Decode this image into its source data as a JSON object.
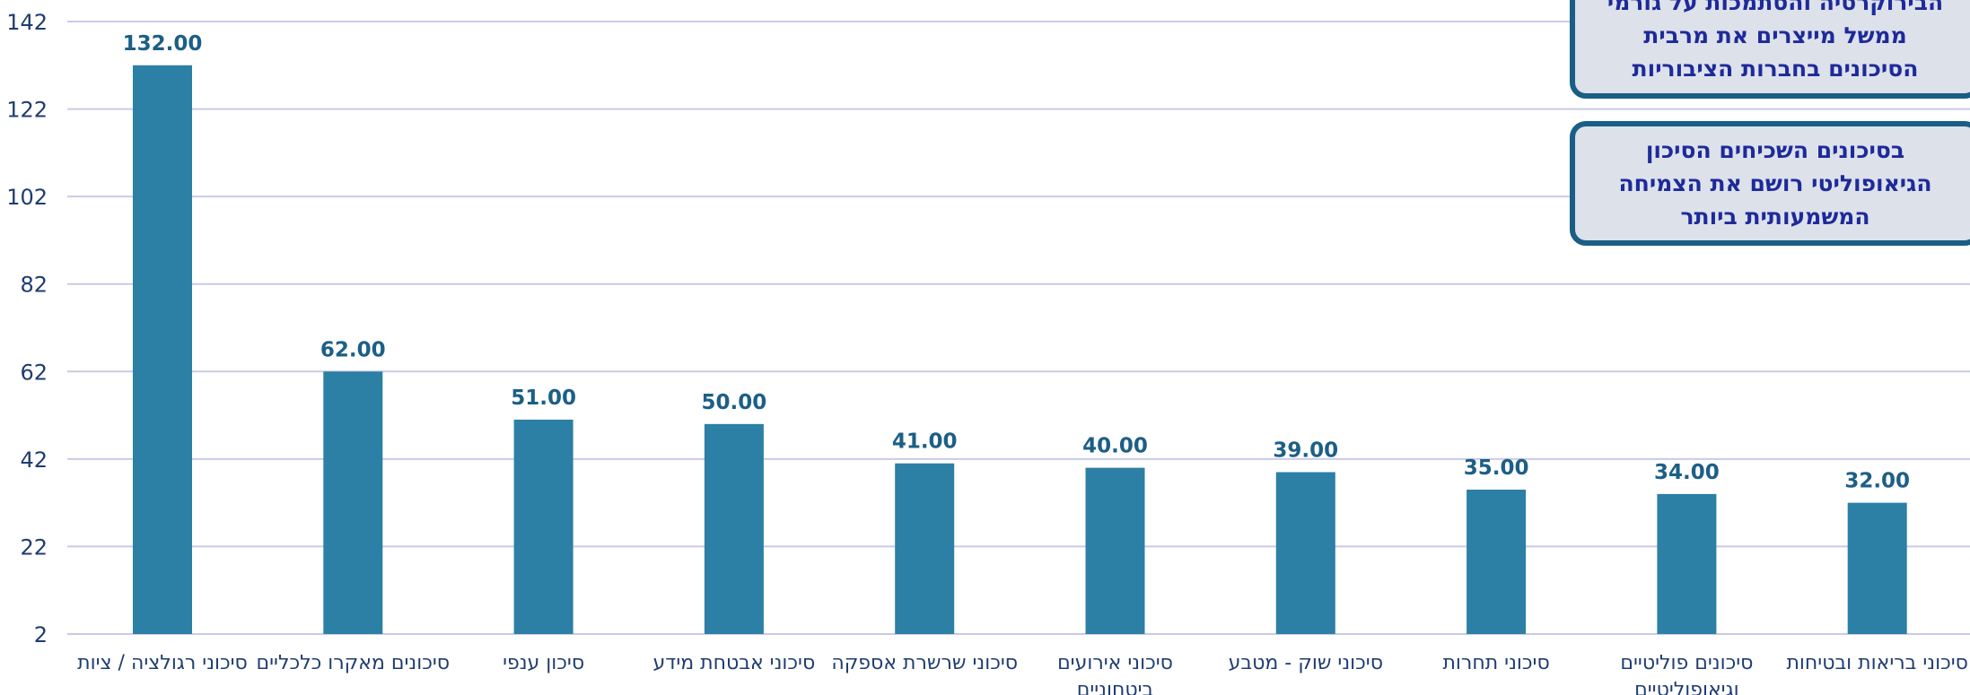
{
  "chart_data": {
    "type": "bar",
    "title": "",
    "xlabel": "",
    "ylabel": "",
    "ylim": [
      2,
      142
    ],
    "yticks": [
      2,
      22,
      42,
      62,
      82,
      102,
      122,
      142
    ],
    "grid": true,
    "categories": [
      [
        "סיכוני רגולציה / ציות"
      ],
      [
        "סיכונים מאקרו כלכליים"
      ],
      [
        "סיכון ענפי"
      ],
      [
        "סיכוני אבטחת מידע"
      ],
      [
        "סיכוני שרשרת אספקה"
      ],
      [
        "סיכוני אירועים",
        "ביטחוניים"
      ],
      [
        "סיכוני שוק - מטבע"
      ],
      [
        "סיכוני תחרות"
      ],
      [
        "סיכונים פוליטיים",
        "וגיאופוליטיים"
      ],
      [
        "סיכוני בריאות ובטיחות"
      ]
    ],
    "values": [
      132,
      62,
      51,
      50,
      41,
      40,
      39,
      35,
      34,
      32
    ],
    "value_labels": [
      "132.00",
      "62.00",
      "51.00",
      "50.00",
      "41.00",
      "40.00",
      "39.00",
      "35.00",
      "34.00",
      "32.00"
    ],
    "colors": {
      "bar": "#2c7fa5",
      "grid": "#c9cbe6",
      "axis_text": "#1f3c70",
      "value_label": "#1c5f86"
    }
  },
  "callouts": [
    {
      "lines": [
        "הבירוקרטיה והסתמכות על גורמי",
        "ממשל מייצרים את מרבית",
        "הסיכונים בחברות הציבוריות"
      ]
    },
    {
      "lines": [
        "בסיכונים השכיחים הסיכון",
        "הגיאופוליטי רושם את הצמיחה",
        "המשמעותית ביותר"
      ]
    }
  ]
}
